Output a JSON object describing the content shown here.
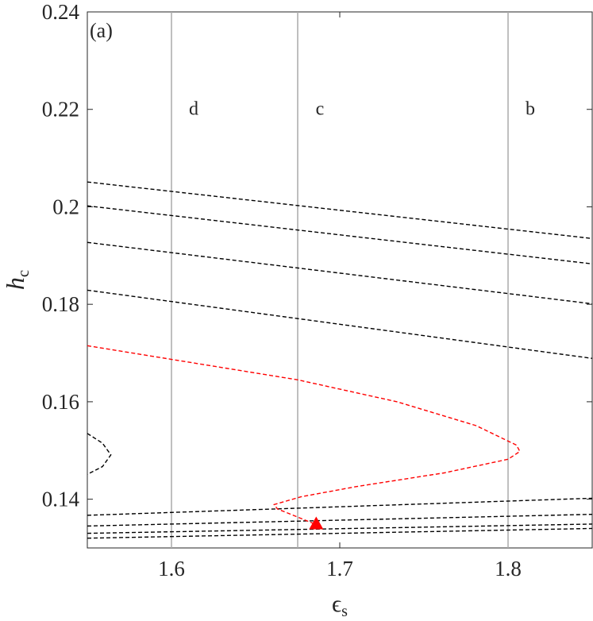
{
  "chart_data": {
    "type": "line",
    "panel_label": "(a)",
    "xlabel": "ϵ",
    "xlabel_sub": "s",
    "ylabel": "h",
    "ylabel_sub": "c",
    "xlim": [
      1.55,
      1.85
    ],
    "ylim": [
      0.13,
      0.24
    ],
    "xticks": [
      1.6,
      1.7,
      1.8
    ],
    "yticks": [
      0.14,
      0.16,
      0.18,
      0.2,
      0.22,
      0.24
    ],
    "vline_color": "#aaaaaa",
    "label_y": 0.22,
    "vlines": [
      {
        "x": 1.6,
        "label": "d"
      },
      {
        "x": 1.675,
        "label": "c"
      },
      {
        "x": 1.8,
        "label": "b"
      }
    ],
    "series": [
      {
        "color": "#000000",
        "dashed": true,
        "x": [
          1.55,
          1.85
        ],
        "values": [
          0.2051,
          0.1935
        ]
      },
      {
        "color": "#000000",
        "dashed": true,
        "x": [
          1.55,
          1.85
        ],
        "values": [
          0.2002,
          0.1883
        ]
      },
      {
        "color": "#000000",
        "dashed": true,
        "x": [
          1.55,
          1.85
        ],
        "values": [
          0.1927,
          0.1801
        ]
      },
      {
        "color": "#000000",
        "dashed": true,
        "x": [
          1.55,
          1.85
        ],
        "values": [
          0.1829,
          0.1689
        ]
      },
      {
        "color": "#000000",
        "dashed": true,
        "x": [
          1.55,
          1.85
        ],
        "values": [
          0.1367,
          0.1402
        ]
      },
      {
        "color": "#000000",
        "dashed": true,
        "x": [
          1.55,
          1.85
        ],
        "values": [
          0.1345,
          0.1369
        ]
      },
      {
        "color": "#000000",
        "dashed": true,
        "x": [
          1.55,
          1.85
        ],
        "values": [
          0.133,
          0.1349
        ]
      },
      {
        "color": "#000000",
        "dashed": true,
        "x": [
          1.55,
          1.85
        ],
        "values": [
          0.132,
          0.134
        ]
      },
      {
        "color": "#000000",
        "dashed": true,
        "x": [
          1.55,
          1.559,
          1.564,
          1.559,
          1.55
        ],
        "values": [
          0.1535,
          0.1515,
          0.1491,
          0.1467,
          0.1451
        ]
      },
      {
        "color": "#ff0000",
        "dashed": true,
        "x": [
          1.55,
          1.6,
          1.675,
          1.734,
          1.781,
          1.805,
          1.807,
          1.8,
          1.762,
          1.71,
          1.677,
          1.661,
          1.663,
          1.686
        ],
        "values": [
          0.1715,
          0.1687,
          0.1645,
          0.16,
          0.1551,
          0.1511,
          0.1498,
          0.1482,
          0.1454,
          0.1426,
          0.1405,
          0.1389,
          0.138,
          0.1348
        ]
      }
    ],
    "markers": [
      {
        "x": 1.686,
        "value": 0.1348,
        "shape": "triangle",
        "color": "#ff0000"
      }
    ]
  }
}
